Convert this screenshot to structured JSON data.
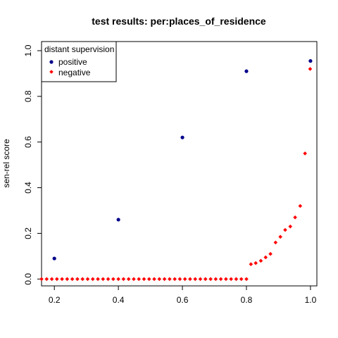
{
  "chart_data": {
    "type": "scatter",
    "title": "test results: per:places_of_residence",
    "xlabel": "",
    "ylabel": "sen-rel score",
    "xlim": [
      0.16,
      1.02
    ],
    "ylim": [
      -0.03,
      1.04
    ],
    "xticks": [
      0.2,
      0.4,
      0.6,
      0.8,
      1.0
    ],
    "xtick_labels": [
      "0.2",
      "0.4",
      "0.6",
      "0.8",
      "1.0"
    ],
    "yticks": [
      0.0,
      0.2,
      0.4,
      0.6,
      0.8,
      1.0
    ],
    "ytick_labels": [
      "0.0",
      "0.2",
      "0.4",
      "0.6",
      "0.8",
      "1.0"
    ],
    "legend": {
      "title": "distant supervision",
      "placement": "top-left"
    },
    "series": [
      {
        "name": "positive",
        "color": "#00008b",
        "marker": "circle",
        "x": [
          0.2,
          0.4,
          0.6,
          0.8,
          1.0
        ],
        "y": [
          0.09,
          0.26,
          0.62,
          0.91,
          0.955
        ]
      },
      {
        "name": "negative",
        "color": "#ff0000",
        "marker": "diamond",
        "x": [
          0.16,
          0.176,
          0.192,
          0.208,
          0.224,
          0.24,
          0.256,
          0.272,
          0.288,
          0.304,
          0.32,
          0.336,
          0.352,
          0.368,
          0.384,
          0.4,
          0.416,
          0.432,
          0.448,
          0.464,
          0.48,
          0.496,
          0.512,
          0.528,
          0.544,
          0.56,
          0.576,
          0.592,
          0.608,
          0.624,
          0.64,
          0.656,
          0.672,
          0.688,
          0.704,
          0.72,
          0.736,
          0.752,
          0.768,
          0.784,
          0.8,
          0.814,
          0.829,
          0.845,
          0.86,
          0.875,
          0.891,
          0.906,
          0.921,
          0.937,
          0.952,
          0.968,
          0.983,
          0.999
        ],
        "y": [
          0,
          0,
          0,
          0,
          0,
          0,
          0,
          0,
          0,
          0,
          0,
          0,
          0,
          0,
          0,
          0,
          0,
          0,
          0,
          0,
          0,
          0,
          0,
          0,
          0,
          0,
          0,
          0,
          0,
          0,
          0,
          0,
          0,
          0,
          0,
          0,
          0,
          0,
          0,
          0,
          0,
          0.065,
          0.07,
          0.08,
          0.095,
          0.11,
          0.16,
          0.185,
          0.215,
          0.23,
          0.27,
          0.32,
          0.55,
          0.92
        ]
      }
    ]
  }
}
